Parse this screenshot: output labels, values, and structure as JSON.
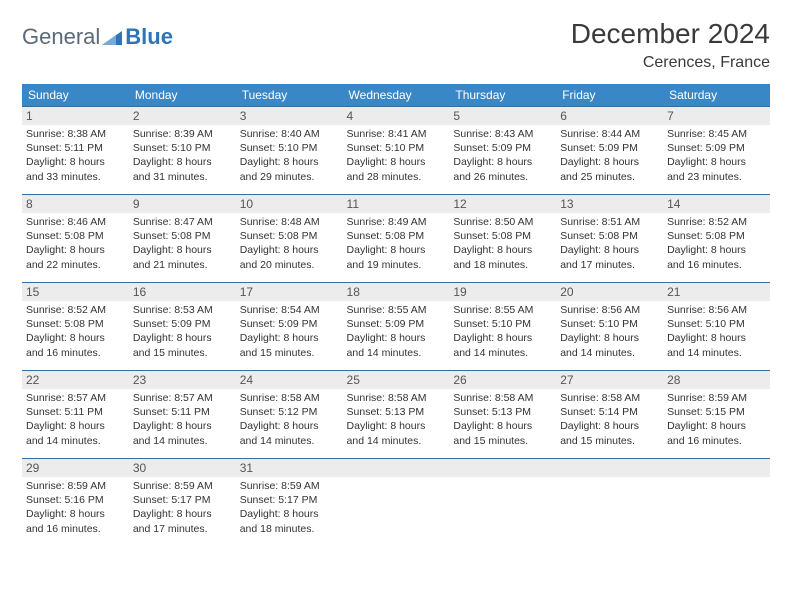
{
  "logo": {
    "part1": "General",
    "part2": "Blue"
  },
  "title": "December 2024",
  "location": "Cerences, France",
  "colors": {
    "header_bg": "#3a87c8",
    "header_text": "#ffffff",
    "row_border": "#2f6fa6",
    "daynum_bg": "#ececec",
    "logo_gray": "#5c6a78",
    "logo_blue": "#2f74b5"
  },
  "typography": {
    "month_title_fontsize": 28,
    "location_fontsize": 16,
    "day_header_fontsize": 12,
    "cell_fontsize": 10.5
  },
  "day_headers": [
    "Sunday",
    "Monday",
    "Tuesday",
    "Wednesday",
    "Thursday",
    "Friday",
    "Saturday"
  ],
  "weeks": [
    [
      {
        "n": "1",
        "sr": "8:38 AM",
        "ss": "5:11 PM",
        "dl": "8 hours and 33 minutes."
      },
      {
        "n": "2",
        "sr": "8:39 AM",
        "ss": "5:10 PM",
        "dl": "8 hours and 31 minutes."
      },
      {
        "n": "3",
        "sr": "8:40 AM",
        "ss": "5:10 PM",
        "dl": "8 hours and 29 minutes."
      },
      {
        "n": "4",
        "sr": "8:41 AM",
        "ss": "5:10 PM",
        "dl": "8 hours and 28 minutes."
      },
      {
        "n": "5",
        "sr": "8:43 AM",
        "ss": "5:09 PM",
        "dl": "8 hours and 26 minutes."
      },
      {
        "n": "6",
        "sr": "8:44 AM",
        "ss": "5:09 PM",
        "dl": "8 hours and 25 minutes."
      },
      {
        "n": "7",
        "sr": "8:45 AM",
        "ss": "5:09 PM",
        "dl": "8 hours and 23 minutes."
      }
    ],
    [
      {
        "n": "8",
        "sr": "8:46 AM",
        "ss": "5:08 PM",
        "dl": "8 hours and 22 minutes."
      },
      {
        "n": "9",
        "sr": "8:47 AM",
        "ss": "5:08 PM",
        "dl": "8 hours and 21 minutes."
      },
      {
        "n": "10",
        "sr": "8:48 AM",
        "ss": "5:08 PM",
        "dl": "8 hours and 20 minutes."
      },
      {
        "n": "11",
        "sr": "8:49 AM",
        "ss": "5:08 PM",
        "dl": "8 hours and 19 minutes."
      },
      {
        "n": "12",
        "sr": "8:50 AM",
        "ss": "5:08 PM",
        "dl": "8 hours and 18 minutes."
      },
      {
        "n": "13",
        "sr": "8:51 AM",
        "ss": "5:08 PM",
        "dl": "8 hours and 17 minutes."
      },
      {
        "n": "14",
        "sr": "8:52 AM",
        "ss": "5:08 PM",
        "dl": "8 hours and 16 minutes."
      }
    ],
    [
      {
        "n": "15",
        "sr": "8:52 AM",
        "ss": "5:08 PM",
        "dl": "8 hours and 16 minutes."
      },
      {
        "n": "16",
        "sr": "8:53 AM",
        "ss": "5:09 PM",
        "dl": "8 hours and 15 minutes."
      },
      {
        "n": "17",
        "sr": "8:54 AM",
        "ss": "5:09 PM",
        "dl": "8 hours and 15 minutes."
      },
      {
        "n": "18",
        "sr": "8:55 AM",
        "ss": "5:09 PM",
        "dl": "8 hours and 14 minutes."
      },
      {
        "n": "19",
        "sr": "8:55 AM",
        "ss": "5:10 PM",
        "dl": "8 hours and 14 minutes."
      },
      {
        "n": "20",
        "sr": "8:56 AM",
        "ss": "5:10 PM",
        "dl": "8 hours and 14 minutes."
      },
      {
        "n": "21",
        "sr": "8:56 AM",
        "ss": "5:10 PM",
        "dl": "8 hours and 14 minutes."
      }
    ],
    [
      {
        "n": "22",
        "sr": "8:57 AM",
        "ss": "5:11 PM",
        "dl": "8 hours and 14 minutes."
      },
      {
        "n": "23",
        "sr": "8:57 AM",
        "ss": "5:11 PM",
        "dl": "8 hours and 14 minutes."
      },
      {
        "n": "24",
        "sr": "8:58 AM",
        "ss": "5:12 PM",
        "dl": "8 hours and 14 minutes."
      },
      {
        "n": "25",
        "sr": "8:58 AM",
        "ss": "5:13 PM",
        "dl": "8 hours and 14 minutes."
      },
      {
        "n": "26",
        "sr": "8:58 AM",
        "ss": "5:13 PM",
        "dl": "8 hours and 15 minutes."
      },
      {
        "n": "27",
        "sr": "8:58 AM",
        "ss": "5:14 PM",
        "dl": "8 hours and 15 minutes."
      },
      {
        "n": "28",
        "sr": "8:59 AM",
        "ss": "5:15 PM",
        "dl": "8 hours and 16 minutes."
      }
    ],
    [
      {
        "n": "29",
        "sr": "8:59 AM",
        "ss": "5:16 PM",
        "dl": "8 hours and 16 minutes."
      },
      {
        "n": "30",
        "sr": "8:59 AM",
        "ss": "5:17 PM",
        "dl": "8 hours and 17 minutes."
      },
      {
        "n": "31",
        "sr": "8:59 AM",
        "ss": "5:17 PM",
        "dl": "8 hours and 18 minutes."
      },
      null,
      null,
      null,
      null
    ]
  ],
  "labels": {
    "sunrise": "Sunrise: ",
    "sunset": "Sunset: ",
    "daylight": "Daylight: "
  }
}
